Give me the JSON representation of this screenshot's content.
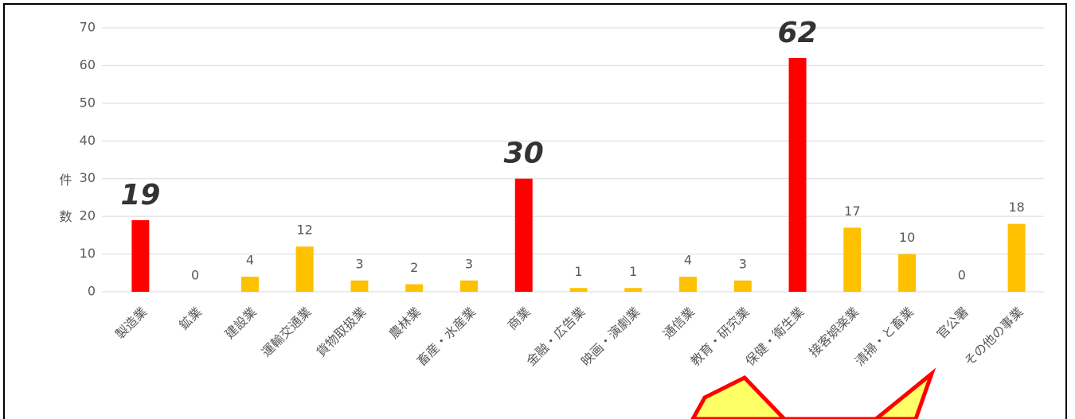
{
  "chart_data": {
    "type": "bar",
    "ylabel": "件数",
    "categories": [
      "製造業",
      "鉱業",
      "建設業",
      "運輸交通業",
      "貨物取扱業",
      "農林業",
      "畜産・水産業",
      "商業",
      "金融・広告業",
      "映画・演劇業",
      "通信業",
      "教育・研究業",
      "保健・衛生業",
      "接客娯楽業",
      "清掃・と畜業",
      "官公署",
      "その他の事業"
    ],
    "values": [
      19,
      0,
      4,
      12,
      3,
      2,
      3,
      30,
      1,
      1,
      4,
      3,
      62,
      17,
      10,
      0,
      18
    ],
    "color": "#ffc000",
    "highlight_color": "#ff0000",
    "colors": [
      "#ff0000",
      "#ffc000",
      "#ffc000",
      "#ffc000",
      "#ffc000",
      "#ffc000",
      "#ffc000",
      "#ff0000",
      "#ffc000",
      "#ffc000",
      "#ffc000",
      "#ffc000",
      "#ff0000",
      "#ffc000",
      "#ffc000",
      "#ffc000",
      "#ffc000"
    ],
    "ylim": [
      0,
      70
    ],
    "yticks": [
      0,
      10,
      20,
      30,
      40,
      50,
      60,
      70
    ],
    "grid": true
  }
}
